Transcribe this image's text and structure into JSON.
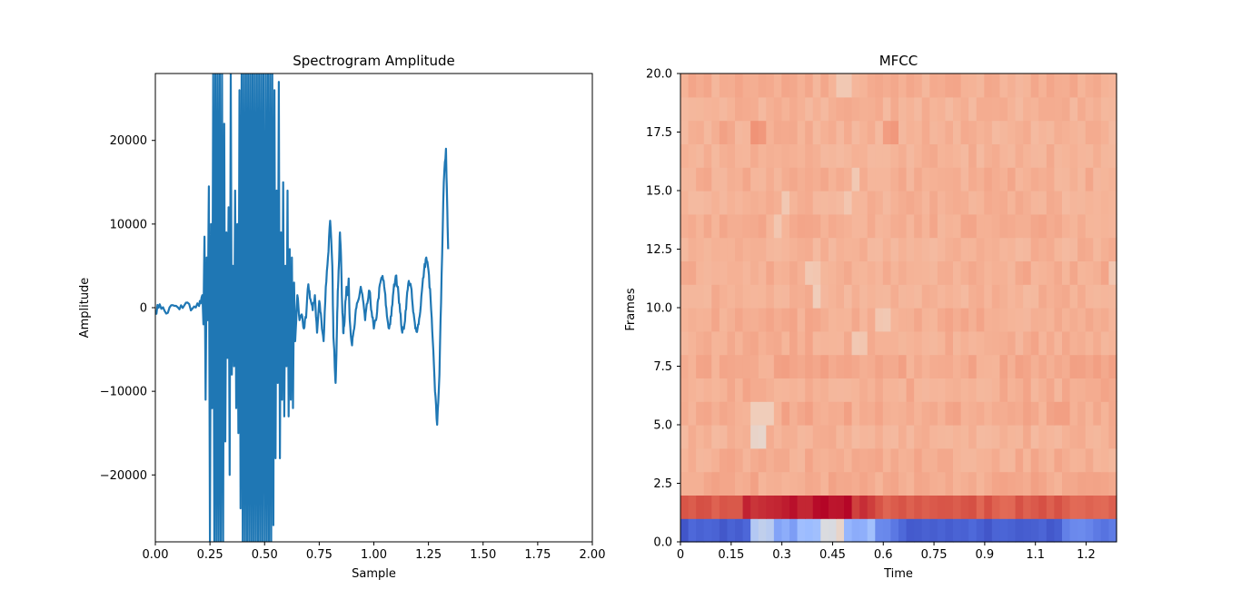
{
  "chart_data": [
    {
      "type": "line",
      "title": "Spectrogram Amplitude",
      "xlabel": "Sample",
      "ylabel": "Amplitude",
      "xlim": [
        0.0,
        2.0
      ],
      "ylim": [
        -28000,
        28000
      ],
      "x_ticks": [
        0.0,
        0.25,
        0.5,
        0.75,
        1.0,
        1.25,
        1.5,
        1.75,
        2.0
      ],
      "x_tick_labels": [
        "0.00",
        "0.25",
        "0.50",
        "0.75",
        "1.00",
        "1.25",
        "1.50",
        "1.75",
        "2.00"
      ],
      "y_ticks": [
        -20000,
        -10000,
        0,
        10000,
        20000
      ],
      "y_tick_labels": [
        "−20000",
        "−10000",
        "0",
        "10000",
        "20000"
      ],
      "grid": false,
      "color": "#1f77b4",
      "series": [
        {
          "x": [
            0.0,
            0.02,
            0.05,
            0.08,
            0.11,
            0.14,
            0.17,
            0.2,
            0.215,
            0.22,
            0.225,
            0.23,
            0.235,
            0.24,
            0.245,
            0.25,
            0.255,
            0.26,
            0.265,
            0.27,
            0.275,
            0.28,
            0.285,
            0.29,
            0.295,
            0.3,
            0.305,
            0.31,
            0.315,
            0.32,
            0.325,
            0.33,
            0.335,
            0.34,
            0.345,
            0.35,
            0.355,
            0.36,
            0.365,
            0.37,
            0.375,
            0.38,
            0.385,
            0.39,
            0.395,
            0.4,
            0.405,
            0.41,
            0.415,
            0.42,
            0.425,
            0.43,
            0.435,
            0.44,
            0.445,
            0.45,
            0.455,
            0.46,
            0.465,
            0.47,
            0.475,
            0.48,
            0.485,
            0.49,
            0.495,
            0.5,
            0.505,
            0.51,
            0.515,
            0.52,
            0.525,
            0.53,
            0.535,
            0.54,
            0.545,
            0.55,
            0.555,
            0.56,
            0.565,
            0.57,
            0.575,
            0.58,
            0.585,
            0.59,
            0.595,
            0.6,
            0.605,
            0.61,
            0.615,
            0.62,
            0.625,
            0.63,
            0.635,
            0.64,
            0.65,
            0.66,
            0.67,
            0.68,
            0.69,
            0.7,
            0.71,
            0.72,
            0.73,
            0.74,
            0.75,
            0.76,
            0.77,
            0.78,
            0.79,
            0.8,
            0.81,
            0.815,
            0.82,
            0.825,
            0.83,
            0.835,
            0.84,
            0.845,
            0.85,
            0.855,
            0.86,
            0.865,
            0.87,
            0.875,
            0.88,
            0.885,
            0.89,
            0.9,
            0.91,
            0.92,
            0.93,
            0.94,
            0.95,
            0.96,
            0.97,
            0.98,
            0.99,
            1.0,
            1.01,
            1.02,
            1.03,
            1.04,
            1.05,
            1.06,
            1.07,
            1.08,
            1.09,
            1.1,
            1.11,
            1.12,
            1.13,
            1.14,
            1.15,
            1.16,
            1.17,
            1.18,
            1.19,
            1.2,
            1.21,
            1.22,
            1.23,
            1.24,
            1.25,
            1.26,
            1.27,
            1.28,
            1.29,
            1.3,
            1.31,
            1.32,
            1.33,
            1.335,
            1.34
          ],
          "y": [
            -500,
            400,
            -700,
            300,
            -200,
            600,
            -100,
            200,
            1500,
            -2000,
            8500,
            -11000,
            6000,
            -1500,
            14500,
            -28000,
            10000,
            -12000,
            28000,
            -28000,
            28000,
            -28000,
            28000,
            -28000,
            28000,
            -28000,
            28000,
            -28000,
            22000,
            -16000,
            9000,
            -6000,
            12000,
            -20000,
            28000,
            -8000,
            5000,
            -7000,
            14000,
            -12000,
            10000,
            -15000,
            26000,
            -24000,
            28000,
            -28000,
            28000,
            -28000,
            28000,
            -28000,
            28000,
            -28000,
            28000,
            -28000,
            28000,
            -28000,
            28000,
            -28000,
            28000,
            -28000,
            28000,
            -28000,
            28000,
            -28000,
            28000,
            -28000,
            28000,
            -28000,
            28000,
            -28000,
            28000,
            -28000,
            28000,
            -26000,
            26000,
            -18000,
            14000,
            -9000,
            27000,
            -18000,
            9000,
            -11000,
            15000,
            -13000,
            5000,
            -7000,
            14000,
            -13000,
            7000,
            -11000,
            6000,
            -12000,
            3000,
            -4000,
            1500,
            -1500,
            -800,
            -2500,
            -1200,
            2800,
            1000,
            -300,
            1500,
            -3000,
            800,
            -1500,
            -4000,
            2500,
            6000,
            10400,
            5000,
            -3500,
            -6000,
            -9000,
            -4000,
            2000,
            5000,
            9000,
            6000,
            500,
            -3000,
            -2000,
            800,
            2500,
            1500,
            3500,
            -1500,
            -4500,
            -2500,
            0,
            1000,
            2500,
            1000,
            -1500,
            500,
            2000,
            -500,
            -2500,
            -1500,
            1000,
            3000,
            3800,
            2000,
            -1000,
            -2500,
            -1000,
            2000,
            3800,
            2500,
            -500,
            -3000,
            -2000,
            1000,
            3200,
            2500,
            -500,
            -2500,
            -2500,
            -1000,
            2000,
            4500,
            6000,
            4500,
            1000,
            -4000,
            -10000,
            -14000,
            -8000,
            4000,
            15000,
            19000,
            13000,
            7000
          ],
          "noise_amplitude": 450
        }
      ]
    },
    {
      "type": "heatmap",
      "title": "MFCC",
      "xlabel": "Time",
      "ylabel": "Frames",
      "xlim": [
        0,
        1.29
      ],
      "ylim": [
        0.0,
        20.0
      ],
      "x_ticks": [
        0,
        0.15,
        0.3,
        0.45,
        0.6,
        0.75,
        0.9,
        1.05,
        1.2
      ],
      "x_tick_labels": [
        "0",
        "0.15",
        "0.3",
        "0.45",
        "0.6",
        "0.75",
        "0.9",
        "1.1",
        "1.2"
      ],
      "y_ticks": [
        0.0,
        2.5,
        5.0,
        7.5,
        10.0,
        12.5,
        15.0,
        17.5,
        20.0
      ],
      "y_tick_labels": [
        "0.0",
        "2.5",
        "5.0",
        "7.5",
        "10.0",
        "12.5",
        "15.0",
        "17.5",
        "20.0"
      ],
      "colormap": "coolwarm",
      "n_rows": 20,
      "n_cols": 56,
      "value_range": [
        0,
        1
      ],
      "row_baselines": [
        0.08,
        0.87,
        0.72,
        0.71,
        0.7,
        0.72,
        0.71,
        0.72,
        0.71,
        0.71,
        0.7,
        0.71,
        0.7,
        0.71,
        0.7,
        0.71,
        0.7,
        0.7,
        0.7,
        0.71
      ],
      "row0_light_segments": [
        [
          9,
          12,
          0.42
        ],
        [
          12,
          15,
          0.3
        ],
        [
          15,
          18,
          0.38
        ],
        [
          18,
          21,
          0.52
        ],
        [
          21,
          25,
          0.35
        ],
        [
          25,
          28,
          0.2
        ]
      ],
      "row1_dark_segments": [
        [
          8,
          12,
          0.95
        ],
        [
          12,
          17,
          0.97
        ],
        [
          17,
          22,
          0.99
        ],
        [
          22,
          25,
          0.93
        ]
      ],
      "light_patches": [
        [
          9,
          4,
          0.56
        ],
        [
          10,
          4,
          0.55
        ],
        [
          9,
          5,
          0.6
        ],
        [
          10,
          5,
          0.6
        ],
        [
          11,
          5,
          0.6
        ],
        [
          17,
          10,
          0.6
        ],
        [
          17,
          11,
          0.63
        ],
        [
          16,
          11,
          0.62
        ],
        [
          22,
          8,
          0.62
        ],
        [
          23,
          8,
          0.63
        ],
        [
          25,
          9,
          0.63
        ],
        [
          26,
          9,
          0.62
        ],
        [
          12,
          13,
          0.63
        ],
        [
          13,
          14,
          0.62
        ],
        [
          21,
          14,
          0.63
        ],
        [
          22,
          15,
          0.62
        ],
        [
          20,
          19,
          0.62
        ],
        [
          21,
          19,
          0.62
        ],
        [
          55,
          11,
          0.63
        ]
      ],
      "dark_patches": [
        [
          9,
          17,
          0.77
        ],
        [
          10,
          17,
          0.76
        ],
        [
          26,
          17,
          0.75
        ],
        [
          27,
          17,
          0.76
        ],
        [
          5,
          17,
          0.74
        ]
      ]
    }
  ]
}
